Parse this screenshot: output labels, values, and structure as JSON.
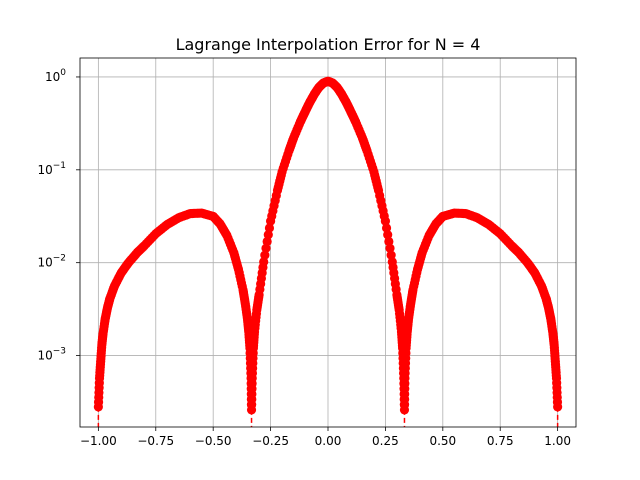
{
  "chart_data": {
    "type": "line",
    "title": "Lagrange Interpolation Error for N = 4",
    "xlabel": "",
    "ylabel": "",
    "xlim": [
      -1.08,
      1.08
    ],
    "ylim": [
      0.00017,
      1.6
    ],
    "yscale": "log",
    "grid": true,
    "legend": "none",
    "x_ticks": [
      {
        "value": -1.0,
        "label": "−1.00"
      },
      {
        "value": -0.75,
        "label": "−0.75"
      },
      {
        "value": -0.5,
        "label": "−0.50"
      },
      {
        "value": -0.25,
        "label": "−0.25"
      },
      {
        "value": 0.0,
        "label": "0.00"
      },
      {
        "value": 0.25,
        "label": "0.25"
      },
      {
        "value": 0.5,
        "label": "0.50"
      },
      {
        "value": 0.75,
        "label": "0.75"
      },
      {
        "value": 1.0,
        "label": "1.00"
      }
    ],
    "y_ticks": [
      {
        "value": 0.001,
        "base": "10",
        "exp": "−3"
      },
      {
        "value": 0.01,
        "base": "10",
        "exp": "−2"
      },
      {
        "value": 0.1,
        "base": "10",
        "exp": "−1"
      },
      {
        "value": 1,
        "base": "10",
        "exp": "0"
      }
    ],
    "series": [
      {
        "color": "#ff0000",
        "marker": "circle",
        "linestyle": "dashed",
        "x": [
          -1.0,
          -0.995,
          -0.99,
          -0.985,
          -0.98,
          -0.97,
          -0.96,
          -0.95,
          -0.93,
          -0.9,
          -0.87,
          -0.83,
          -0.8,
          -0.75,
          -0.7,
          -0.65,
          -0.6,
          -0.55,
          -0.5,
          -0.47,
          -0.44,
          -0.41,
          -0.39,
          -0.37,
          -0.36,
          -0.35,
          -0.345,
          -0.34,
          -0.335,
          -0.333,
          -0.33,
          -0.325,
          -0.32,
          -0.31,
          -0.3,
          -0.28,
          -0.25,
          -0.22,
          -0.2,
          -0.17,
          -0.15,
          -0.12,
          -0.1,
          -0.08,
          -0.06,
          -0.04,
          -0.02,
          0.0,
          0.02,
          0.04,
          0.06,
          0.08,
          0.1,
          0.12,
          0.15,
          0.17,
          0.2,
          0.22,
          0.25,
          0.28,
          0.3,
          0.31,
          0.32,
          0.325,
          0.33,
          0.333,
          0.335,
          0.34,
          0.345,
          0.35,
          0.36,
          0.37,
          0.39,
          0.41,
          0.44,
          0.47,
          0.5,
          0.55,
          0.6,
          0.65,
          0.7,
          0.75,
          0.8,
          0.83,
          0.87,
          0.9,
          0.93,
          0.95,
          0.96,
          0.97,
          0.98,
          0.985,
          0.99,
          0.995,
          1.0
        ],
        "y": [
          0.00028,
          0.00057,
          0.00086,
          0.0013,
          0.0017,
          0.0025,
          0.0033,
          0.0041,
          0.0056,
          0.0078,
          0.0099,
          0.0129,
          0.0152,
          0.0205,
          0.0258,
          0.0305,
          0.0338,
          0.0342,
          0.0315,
          0.0262,
          0.0196,
          0.0128,
          0.0085,
          0.0051,
          0.0036,
          0.0024,
          0.0018,
          0.0012,
          0.00057,
          0.00026,
          0.00057,
          0.0012,
          0.0018,
          0.0031,
          0.0045,
          0.0102,
          0.028,
          0.06,
          0.095,
          0.16,
          0.22,
          0.33,
          0.42,
          0.53,
          0.65,
          0.77,
          0.86,
          0.9,
          0.86,
          0.77,
          0.65,
          0.53,
          0.42,
          0.33,
          0.22,
          0.16,
          0.095,
          0.06,
          0.028,
          0.0102,
          0.0045,
          0.0031,
          0.0018,
          0.0012,
          0.00057,
          0.00026,
          0.00057,
          0.0012,
          0.0018,
          0.0024,
          0.0036,
          0.0051,
          0.0085,
          0.0128,
          0.0196,
          0.0262,
          0.0315,
          0.0342,
          0.0338,
          0.0305,
          0.0258,
          0.0205,
          0.0152,
          0.0129,
          0.0099,
          0.0078,
          0.0056,
          0.0041,
          0.0033,
          0.0025,
          0.0017,
          0.0013,
          0.00086,
          0.00057,
          0.00028
        ]
      }
    ]
  }
}
